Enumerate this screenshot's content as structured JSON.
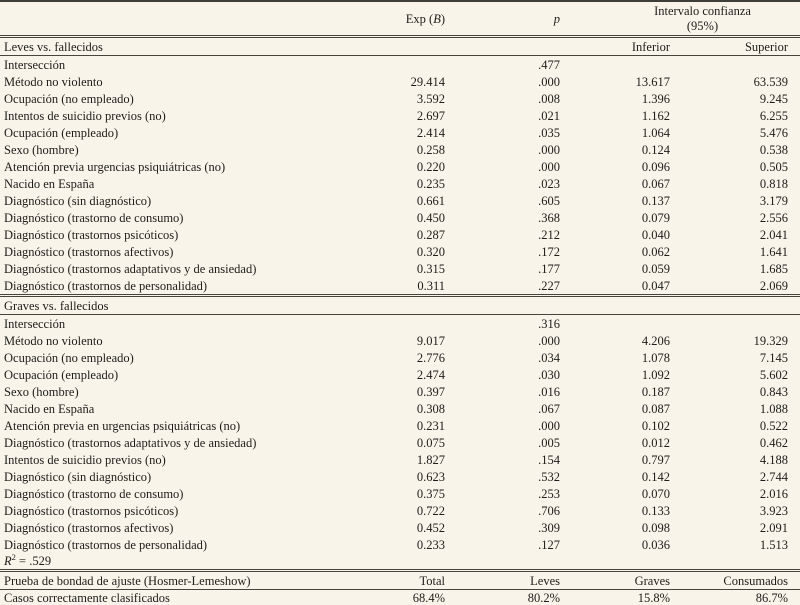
{
  "page": {
    "background": "#f8f4ea",
    "text_color": "#1e1d19",
    "rule_color": "#45453e"
  },
  "table": {
    "columns": {
      "exp_b": {
        "prefix": "Exp (",
        "italic": "B",
        "suffix": ")"
      },
      "p": "p",
      "ci_title": "Intervalo confianza",
      "ci_subtitle": "(95%)",
      "inferior": "Inferior",
      "superior": "Superior"
    },
    "sections": [
      {
        "title": "Leves vs. fallecidos",
        "rows": [
          {
            "label": "Intersección",
            "exp_b": "",
            "p": ".477",
            "inferior": "",
            "superior": ""
          },
          {
            "label": "Método no violento",
            "exp_b": "29.414",
            "p": ".000",
            "inferior": "13.617",
            "superior": "63.539"
          },
          {
            "label": "Ocupación (no empleado)",
            "exp_b": "3.592",
            "p": ".008",
            "inferior": "1.396",
            "superior": "9.245"
          },
          {
            "label": "Intentos de suicidio previos (no)",
            "exp_b": "2.697",
            "p": ".021",
            "inferior": "1.162",
            "superior": "6.255"
          },
          {
            "label": "Ocupación (empleado)",
            "exp_b": "2.414",
            "p": ".035",
            "inferior": "1.064",
            "superior": "5.476"
          },
          {
            "label": "Sexo (hombre)",
            "exp_b": "0.258",
            "p": ".000",
            "inferior": "0.124",
            "superior": "0.538"
          },
          {
            "label": "Atención previa urgencias psiquiátricas (no)",
            "exp_b": "0.220",
            "p": ".000",
            "inferior": "0.096",
            "superior": "0.505"
          },
          {
            "label": "Nacido en España",
            "exp_b": "0.235",
            "p": ".023",
            "inferior": "0.067",
            "superior": "0.818"
          },
          {
            "label": "Diagnóstico (sin diagnóstico)",
            "exp_b": "0.661",
            "p": ".605",
            "inferior": "0.137",
            "superior": "3.179"
          },
          {
            "label": "Diagnóstico (trastorno de consumo)",
            "exp_b": "0.450",
            "p": ".368",
            "inferior": "0.079",
            "superior": "2.556"
          },
          {
            "label": "Diagnóstico (trastornos psicóticos)",
            "exp_b": "0.287",
            "p": ".212",
            "inferior": "0.040",
            "superior": "2.041"
          },
          {
            "label": "Diagnóstico (trastornos afectivos)",
            "exp_b": "0.320",
            "p": ".172",
            "inferior": "0.062",
            "superior": "1.641"
          },
          {
            "label": "Diagnóstico (trastornos adaptativos y de ansiedad)",
            "exp_b": "0.315",
            "p": ".177",
            "inferior": "0.059",
            "superior": "1.685"
          },
          {
            "label": "Diagnóstico (trastornos de personalidad)",
            "exp_b": "0.311",
            "p": ".227",
            "inferior": "0.047",
            "superior": "2.069"
          }
        ]
      },
      {
        "title": "Graves vs. fallecidos",
        "rows": [
          {
            "label": "Intersección",
            "exp_b": "",
            "p": ".316",
            "inferior": "",
            "superior": ""
          },
          {
            "label": "Método no violento",
            "exp_b": "9.017",
            "p": ".000",
            "inferior": "4.206",
            "superior": "19.329"
          },
          {
            "label": "Ocupación (no empleado)",
            "exp_b": "2.776",
            "p": ".034",
            "inferior": "1.078",
            "superior": "7.145"
          },
          {
            "label": "Ocupación (empleado)",
            "exp_b": "2.474",
            "p": ".030",
            "inferior": "1.092",
            "superior": "5.602"
          },
          {
            "label": "Sexo (hombre)",
            "exp_b": "0.397",
            "p": ".016",
            "inferior": "0.187",
            "superior": "0.843"
          },
          {
            "label": "Nacido en España",
            "exp_b": "0.308",
            "p": ".067",
            "inferior": "0.087",
            "superior": "1.088"
          },
          {
            "label": "Atención previa en urgencias psiquiátricas (no)",
            "exp_b": "0.231",
            "p": ".000",
            "inferior": "0.102",
            "superior": "0.522"
          },
          {
            "label": "Diagnóstico (trastornos adaptativos y de ansiedad)",
            "exp_b": "0.075",
            "p": ".005",
            "inferior": "0.012",
            "superior": "0.462"
          },
          {
            "label": "Intentos de suicidio previos (no)",
            "exp_b": "1.827",
            "p": ".154",
            "inferior": "0.797",
            "superior": "4.188"
          },
          {
            "label": "Diagnóstico (sin diagnóstico)",
            "exp_b": "0.623",
            "p": ".532",
            "inferior": "0.142",
            "superior": "2.744"
          },
          {
            "label": "Diagnóstico (trastorno de consumo)",
            "exp_b": "0.375",
            "p": ".253",
            "inferior": "0.070",
            "superior": "2.016"
          },
          {
            "label": "Diagnóstico (trastornos psicóticos)",
            "exp_b": "0.722",
            "p": ".706",
            "inferior": "0.133",
            "superior": "3.923"
          },
          {
            "label": "Diagnóstico (trastornos afectivos)",
            "exp_b": "0.452",
            "p": ".309",
            "inferior": "0.098",
            "superior": "2.091"
          },
          {
            "label": "Diagnóstico (trastornos de personalidad)",
            "exp_b": "0.233",
            "p": ".127",
            "inferior": "0.036",
            "superior": "1.513"
          }
        ]
      }
    ],
    "r_squared": {
      "symbol": "R",
      "superscript": "2",
      "value": " = .529"
    },
    "goodness_of_fit": {
      "label": "Prueba de bondad de ajuste (Hosmer-Lemeshow)",
      "columns": [
        "Total",
        "Leves",
        "Graves",
        "Consumados"
      ]
    },
    "classified": {
      "label": "Casos correctamente clasificados",
      "values": [
        "68.4%",
        "80.2%",
        "15.8%",
        "86.7%"
      ]
    }
  }
}
